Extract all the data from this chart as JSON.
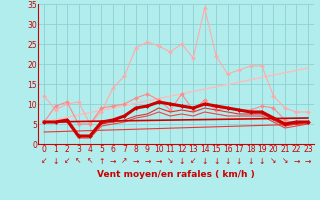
{
  "background_color": "#b2eded",
  "grid_color": "#90d0d0",
  "text_color": "#cc0000",
  "xlabel": "Vent moyen/en rafales ( km/h )",
  "xlim": [
    -0.5,
    23.5
  ],
  "ylim": [
    0,
    35
  ],
  "yticks": [
    0,
    5,
    10,
    15,
    20,
    25,
    30,
    35
  ],
  "xticks": [
    0,
    1,
    2,
    3,
    4,
    5,
    6,
    7,
    8,
    9,
    10,
    11,
    12,
    13,
    14,
    15,
    16,
    17,
    18,
    19,
    20,
    21,
    22,
    23
  ],
  "series": [
    {
      "x": [
        0,
        1,
        2,
        3,
        4,
        5,
        6,
        7,
        8,
        9,
        10,
        11,
        12,
        13,
        14,
        15,
        16,
        17,
        18,
        19,
        20,
        21,
        22,
        23
      ],
      "y": [
        12,
        8.5,
        10,
        10.5,
        5,
        8,
        14,
        17,
        24,
        25.5,
        24.5,
        23,
        25,
        21.5,
        34,
        22,
        17.5,
        18.5,
        19.5,
        19.5,
        12,
        9,
        8,
        8
      ],
      "color": "#ffaaaa",
      "lw": 0.8,
      "marker": "D",
      "ms": 2.0,
      "zorder": 3
    },
    {
      "x": [
        0,
        1,
        2,
        3,
        4,
        5,
        6,
        7,
        8,
        9,
        10,
        11,
        12,
        13,
        14,
        15,
        16,
        17,
        18,
        19,
        20,
        21,
        22,
        23
      ],
      "y": [
        5.5,
        9.5,
        10.5,
        5,
        5,
        9,
        9.5,
        10,
        11.5,
        12.5,
        11,
        8.5,
        12.5,
        8.5,
        11,
        8.5,
        9,
        8.5,
        8.5,
        9.5,
        9,
        6,
        5,
        5.5
      ],
      "color": "#ff8888",
      "lw": 0.8,
      "marker": "D",
      "ms": 2.0,
      "zorder": 3
    },
    {
      "x": [
        0,
        23
      ],
      "y": [
        5.5,
        19
      ],
      "color": "#ffbbbb",
      "lw": 1.0,
      "marker": null,
      "ms": 0,
      "zorder": 2
    },
    {
      "x": [
        0,
        1,
        2,
        3,
        4,
        5,
        6,
        7,
        8,
        9,
        10,
        11,
        12,
        13,
        14,
        15,
        16,
        17,
        18,
        19,
        20,
        21,
        22,
        23
      ],
      "y": [
        5.5,
        5.5,
        6,
        2,
        2,
        5.5,
        6,
        7,
        9,
        9.5,
        10.5,
        10,
        9.5,
        9,
        10,
        9.5,
        9,
        8.5,
        8,
        8,
        6.5,
        5,
        5.5,
        5.5
      ],
      "color": "#cc0000",
      "lw": 2.2,
      "marker": "D",
      "ms": 2.0,
      "zorder": 5
    },
    {
      "x": [
        0,
        1,
        2,
        3,
        4,
        5,
        6,
        7,
        8,
        9,
        10,
        11,
        12,
        13,
        14,
        15,
        16,
        17,
        18,
        19,
        20,
        21,
        22,
        23
      ],
      "y": [
        5.5,
        5.5,
        5.5,
        2,
        2,
        5,
        5.5,
        6,
        7,
        7.5,
        9,
        8,
        8.5,
        8,
        9,
        8.5,
        8,
        7.5,
        7.5,
        7.5,
        6,
        4.5,
        5,
        5.5
      ],
      "color": "#dd3333",
      "lw": 0.8,
      "marker": null,
      "ms": 0,
      "zorder": 4
    },
    {
      "x": [
        0,
        1,
        2,
        3,
        4,
        5,
        6,
        7,
        8,
        9,
        10,
        11,
        12,
        13,
        14,
        15,
        16,
        17,
        18,
        19,
        20,
        21,
        22,
        23
      ],
      "y": [
        5.5,
        5.5,
        5.5,
        1.5,
        1.5,
        4.5,
        5,
        5.5,
        6.5,
        7,
        8,
        7,
        7.5,
        7,
        8,
        7.5,
        7,
        7,
        7,
        7,
        5.5,
        4,
        4.5,
        5
      ],
      "color": "#ee4444",
      "lw": 0.8,
      "marker": null,
      "ms": 0,
      "zorder": 4
    },
    {
      "x": [
        0,
        23
      ],
      "y": [
        5.5,
        6.5
      ],
      "color": "#cc0000",
      "lw": 1.2,
      "marker": null,
      "ms": 0,
      "zorder": 4
    },
    {
      "x": [
        0,
        23
      ],
      "y": [
        3.0,
        5.0
      ],
      "color": "#ee3333",
      "lw": 0.8,
      "marker": null,
      "ms": 0,
      "zorder": 3
    }
  ],
  "arrow_symbols": [
    "↙",
    "↓",
    "↙",
    "↖",
    "↖",
    "↑",
    "→",
    "↗",
    "→",
    "→",
    "→",
    "↘",
    "↓",
    "↙",
    "↓",
    "↓",
    "↓",
    "↓",
    "↓",
    "↓",
    "↘",
    "↘",
    "→",
    "→"
  ],
  "xlabel_fontsize": 6.5,
  "tick_fontsize": 5.5,
  "arrow_fontsize": 5.5
}
